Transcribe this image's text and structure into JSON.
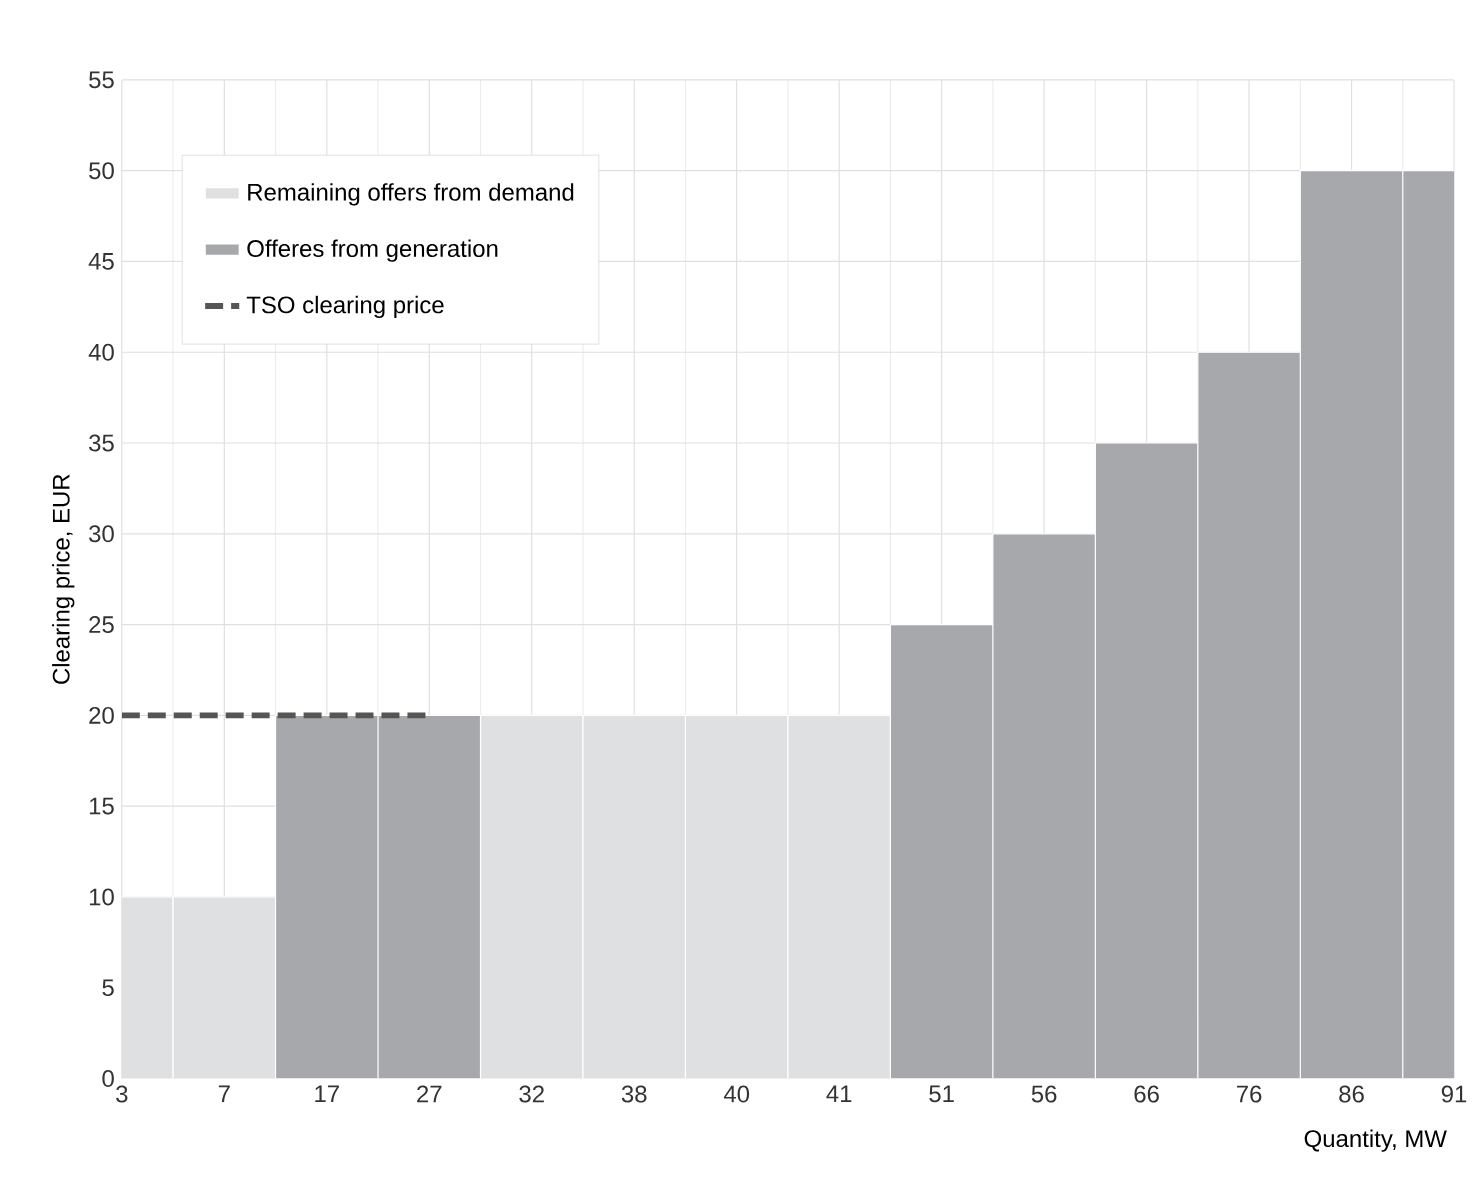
{
  "chart_data": {
    "type": "bar",
    "xlabel": "Quantity, MW",
    "ylabel": "Clearing price, EUR",
    "categories": [
      "3",
      "7",
      "17",
      "27",
      "32",
      "38",
      "40",
      "41",
      "51",
      "56",
      "66",
      "76",
      "86",
      "91"
    ],
    "series": [
      {
        "name": "Remaining offers from demand",
        "color": "#dfe0e2",
        "values": [
          10,
          10,
          null,
          null,
          20,
          20,
          20,
          20,
          null,
          null,
          null,
          null,
          null,
          null
        ]
      },
      {
        "name": "Offeres from generation",
        "color": "#a7a8ac",
        "values": [
          null,
          null,
          20,
          20,
          null,
          null,
          null,
          null,
          25,
          30,
          35,
          40,
          50,
          50
        ]
      },
      {
        "name": "TSO clearing price",
        "type": "line",
        "line_style": "dashed",
        "color": "#555555",
        "values": [
          20,
          20,
          20,
          20,
          null,
          null,
          null,
          null,
          null,
          null,
          null,
          null,
          null,
          null
        ]
      }
    ],
    "ylim": [
      0,
      55
    ],
    "yticks": [
      0,
      5,
      10,
      15,
      20,
      25,
      30,
      35,
      40,
      45,
      50,
      55
    ],
    "grid": true,
    "legend": "top left"
  }
}
